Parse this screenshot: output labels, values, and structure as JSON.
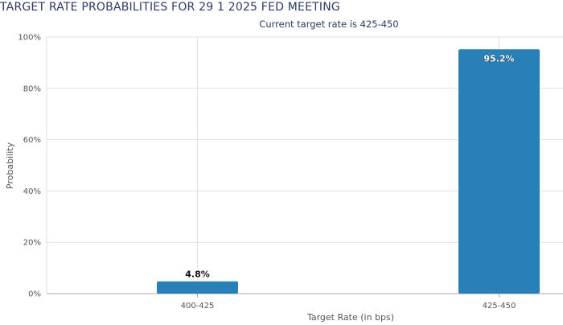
{
  "chart_data": {
    "type": "bar",
    "title": "TARGET RATE PROBABILITIES FOR 29 1 2025 FED MEETING",
    "subtitle": "Current target rate is 425-450",
    "xlabel": "Target Rate (in bps)",
    "ylabel": "Probability",
    "categories": [
      "400-425",
      "425-450"
    ],
    "values": [
      4.8,
      95.2
    ],
    "data_labels": [
      "4.8%",
      "95.2%"
    ],
    "ylim": [
      0,
      100
    ],
    "y_ticks": [
      0,
      20,
      40,
      60,
      80,
      100
    ],
    "y_tick_labels": [
      "0%",
      "20%",
      "40%",
      "60%",
      "80%",
      "100%"
    ],
    "grid": true,
    "bar_color": "#2980b9"
  }
}
